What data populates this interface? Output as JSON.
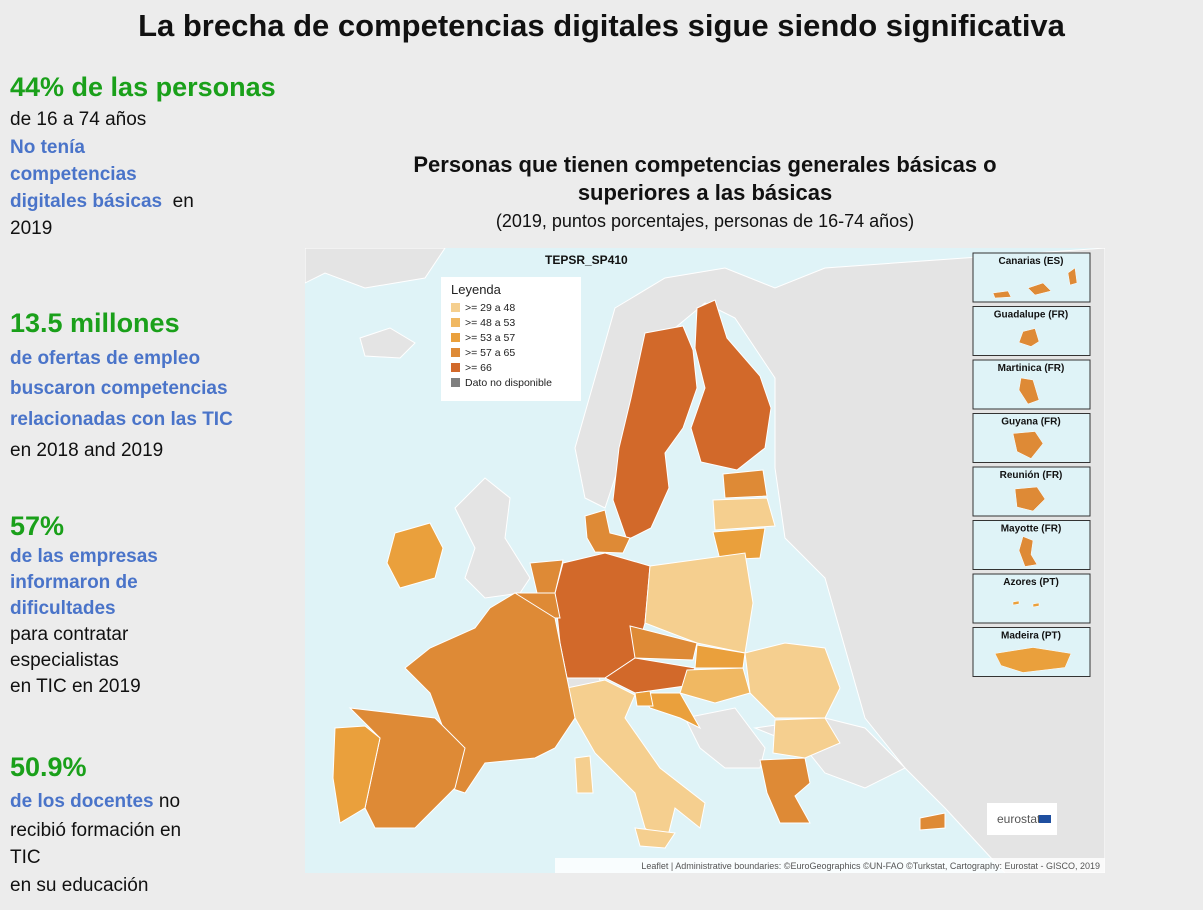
{
  "title": "La brecha de competencias digitales sigue siendo significativa",
  "stats": [
    {
      "lines": [
        [
          {
            "text": "44% de las personas",
            "style": "headline"
          }
        ],
        [
          {
            "text": "de 16 a 74 años",
            "style": "plain"
          }
        ],
        [
          {
            "text": "No tenía",
            "style": "emphasis"
          }
        ],
        [
          {
            "text": "competencias",
            "style": "emphasis"
          }
        ],
        [
          {
            "text": "digitales básicas",
            "style": "emphasis"
          },
          {
            "text": "  en",
            "style": "plain"
          }
        ],
        [
          {
            "text": "2019",
            "style": "plain"
          }
        ]
      ]
    },
    {
      "lines": [
        [
          {
            "text": "13.5 millones",
            "style": "headline"
          }
        ],
        [
          {
            "text": "de ofertas de empleo",
            "style": "emphasis"
          }
        ],
        [
          {
            "text": "buscaron competencias",
            "style": "emphasis"
          }
        ],
        [
          {
            "text": "relacionadas con las TIC",
            "style": "emphasis"
          }
        ],
        [
          {
            "text": "en 2018 and 2019",
            "style": "plain"
          }
        ]
      ]
    },
    {
      "lines": [
        [
          {
            "text": "57%",
            "style": "headline"
          }
        ],
        [
          {
            "text": "de las empresas",
            "style": "emphasis"
          }
        ],
        [
          {
            "text": "informaron de",
            "style": "emphasis"
          }
        ],
        [
          {
            "text": "dificultades",
            "style": "emphasis"
          }
        ],
        [
          {
            "text": "para contratar",
            "style": "plain"
          }
        ],
        [
          {
            "text": "especialistas",
            "style": "plain"
          }
        ],
        [
          {
            "text": "en TIC en 2019",
            "style": "plain"
          }
        ]
      ]
    },
    {
      "lines": [
        [
          {
            "text": "50.9%",
            "style": "headline"
          }
        ],
        [
          {
            "text": "de los docentes",
            "style": "emphasis"
          },
          {
            "text": " no",
            "style": "plain"
          }
        ],
        [
          {
            "text": "recibió formación en",
            "style": "plain"
          }
        ],
        [
          {
            "text": "TIC",
            "style": "plain"
          }
        ],
        [
          {
            "text": "en su educación",
            "style": "plain"
          }
        ]
      ]
    }
  ],
  "map": {
    "title_lines": [
      "Personas que tienen competencias generales básicas o",
      "superiores a las básicas"
    ],
    "subtitle": "(2019, puntos porcentajes, personas de 16-74 años)",
    "code": "TEPSR_SP410",
    "legend": {
      "title": "Leyenda",
      "items": [
        {
          "label": ">= 29 a 48",
          "color": "#f5cf8f"
        },
        {
          "label": ">= 48 a 53",
          "color": "#f0b862"
        },
        {
          "label": ">= 53 a 57",
          "color": "#eaa03c"
        },
        {
          "label": ">= 57 a 65",
          "color": "#de8a36"
        },
        {
          "label": ">= 66",
          "color": "#d2692a"
        },
        {
          "label": "Dato no disponible",
          "color": "#7f7f7f"
        }
      ]
    },
    "insets": [
      {
        "label": "Canarias (ES)",
        "color": "#de8a36"
      },
      {
        "label": "Guadalupe (FR)",
        "color": "#de8a36"
      },
      {
        "label": "Martinica (FR)",
        "color": "#de8a36"
      },
      {
        "label": "Guyana  (FR)",
        "color": "#de8a36"
      },
      {
        "label": "Reunión (FR)",
        "color": "#de8a36"
      },
      {
        "label": "Mayotte (FR)",
        "color": "#de8a36"
      },
      {
        "label": "Azores (PT)",
        "color": "#eaa03c"
      },
      {
        "label": "Madeira (PT)",
        "color": "#eaa03c"
      }
    ],
    "attribution": "Leaflet | Administrative boundaries: ©EuroGeographics ©UN-FAO ©Turkstat, Cartography: Eurostat - GISCO, 2019",
    "logo": "eurostat"
  }
}
